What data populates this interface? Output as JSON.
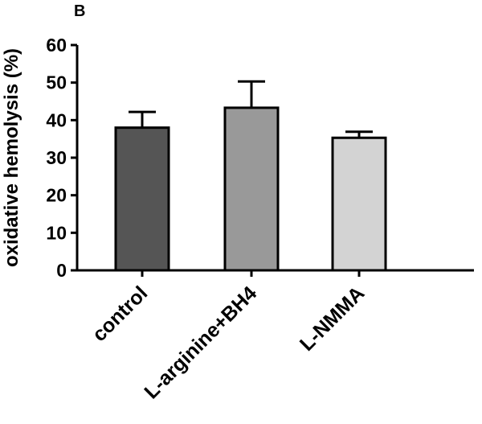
{
  "panel_label": "B",
  "chart_data": {
    "type": "bar",
    "categories": [
      "control",
      "L-arginine+BH4",
      "L-NMMA"
    ],
    "values": [
      38,
      43.3,
      35.3
    ],
    "errors": [
      4.2,
      7,
      1.6
    ],
    "colors": [
      "#555555",
      "#999999",
      "#d3d3d3"
    ],
    "title": "",
    "xlabel": "",
    "ylabel": "oxidative hemolysis (%)",
    "ylim": [
      0,
      60
    ],
    "yticks": [
      0,
      10,
      20,
      30,
      40,
      50,
      60
    ],
    "grid": false,
    "legend": "none"
  }
}
